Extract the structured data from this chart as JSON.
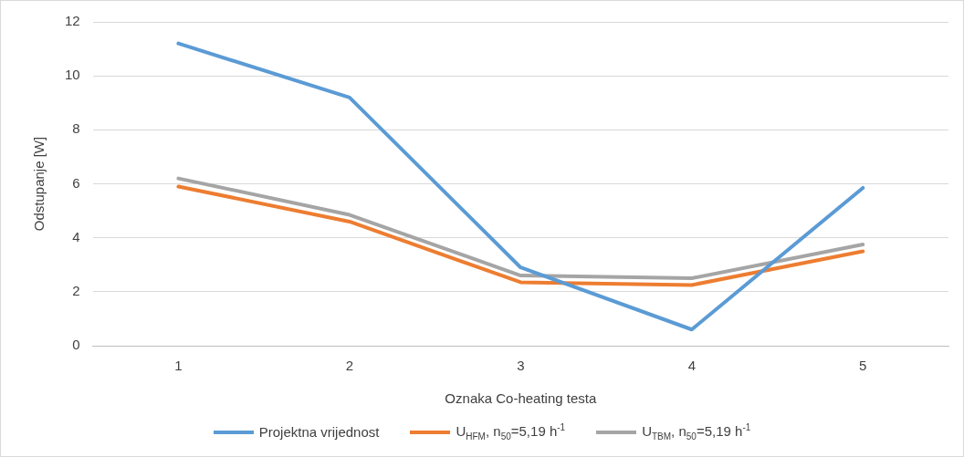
{
  "chart_data": {
    "type": "line",
    "xlabel": "Oznaka Co-heating testa",
    "ylabel": "Odstupanje [W]",
    "categories": [
      "1",
      "2",
      "3",
      "4",
      "5"
    ],
    "ylim": [
      0,
      12
    ],
    "yticks": [
      0,
      2,
      4,
      6,
      8,
      10,
      12
    ],
    "grid": "y",
    "legend": "bottom",
    "marker": "none",
    "line_style": "solid",
    "series": [
      {
        "name": "Projektna vrijednost",
        "color": "#5b9bd5",
        "values": [
          11.2,
          9.2,
          2.9,
          0.6,
          5.85
        ]
      },
      {
        "name": "U$_{HFM}$, n$_{50}$=5,19 h$^{-1}$",
        "color": "#ed7d31",
        "values": [
          5.9,
          4.6,
          2.35,
          2.25,
          3.5
        ]
      },
      {
        "name": "U$_{TBM}$, n$_{50}$=5,19 h$^{-1}$",
        "color": "#a5a5a5",
        "values": [
          6.2,
          4.85,
          2.6,
          2.5,
          3.75
        ]
      }
    ]
  }
}
